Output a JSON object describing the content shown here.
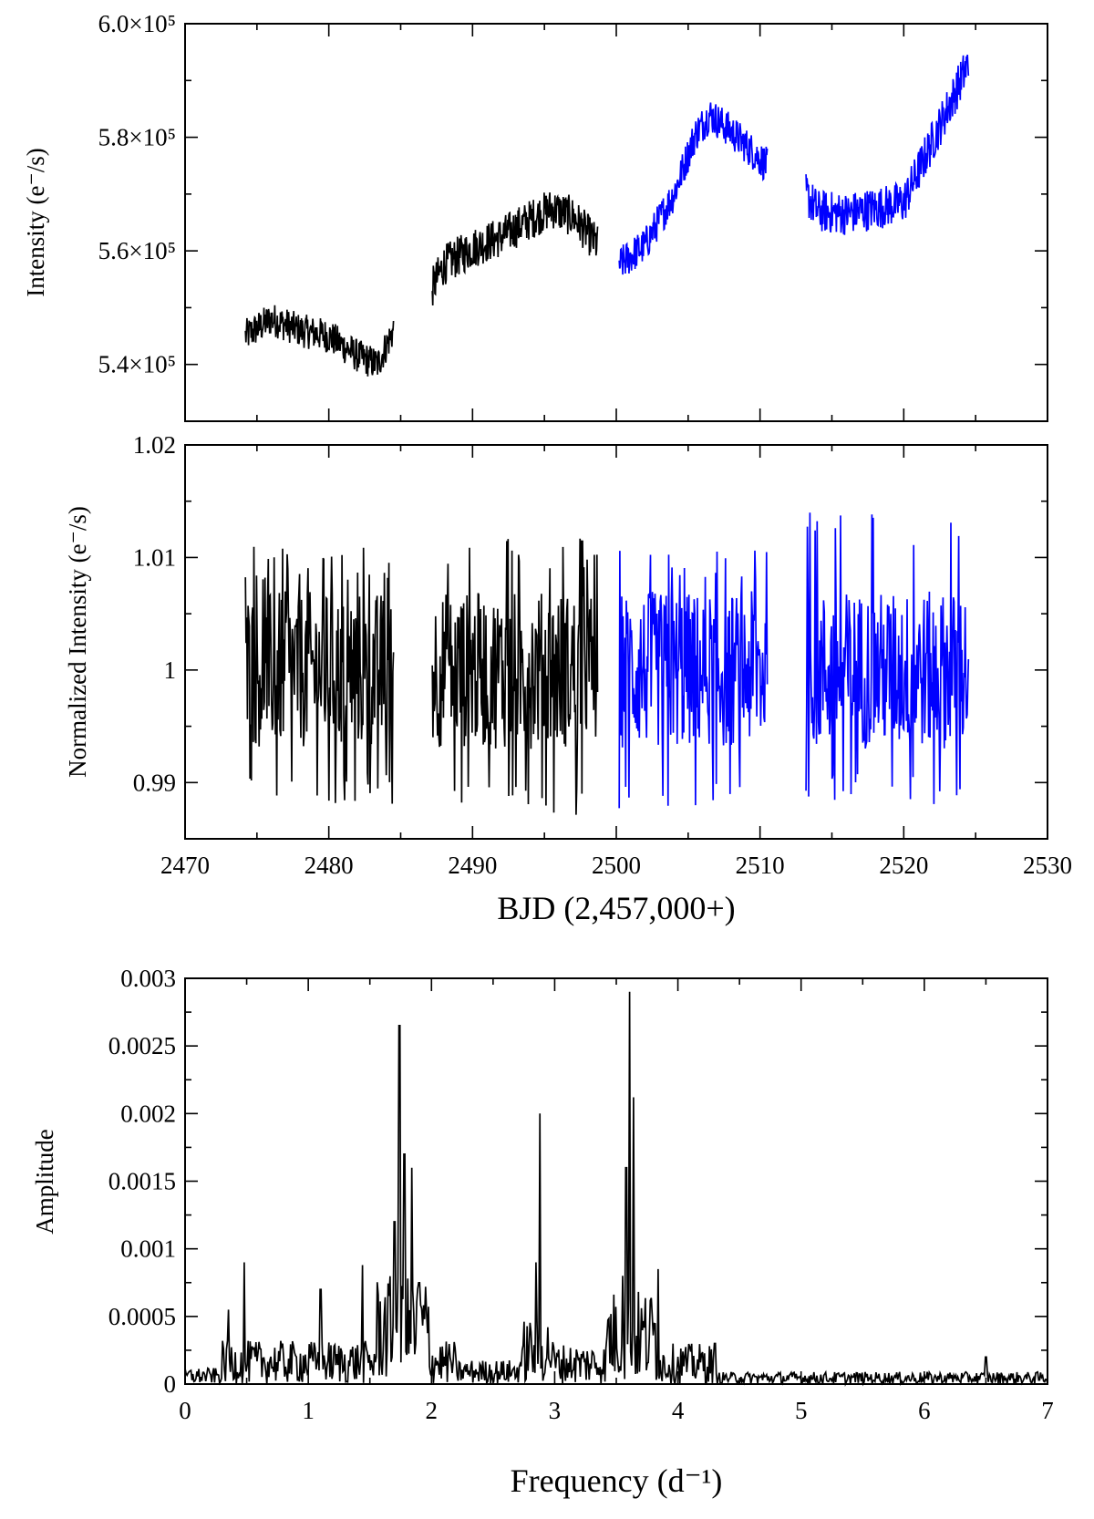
{
  "chart_data": [
    {
      "type": "line",
      "ylabel": "Intensity (e⁻/s)",
      "xlim": [
        2470,
        2530
      ],
      "ylim": [
        530000,
        600000
      ],
      "xticks": [
        2470,
        2480,
        2490,
        2500,
        2510,
        2520,
        2530
      ],
      "yticks": [
        540000,
        560000,
        580000,
        600000
      ],
      "yticklabels": [
        "5.4×10⁵",
        "5.6×10⁵",
        "5.8×10⁵",
        "6.0×10⁵"
      ],
      "series": [
        {
          "color": "#000000",
          "segments": [
            {
              "x": [
                2474.2,
                2476,
                2478,
                2480,
                2482,
                2483.4,
                2484.5
              ],
              "y": [
                545000,
                548000,
                546000,
                545000,
                541500,
                540000,
                546000
              ],
              "noise": 3000
            },
            {
              "x": [
                2487.2,
                2488,
                2490,
                2492,
                2494,
                2495.5,
                2497,
                2498.7
              ],
              "y": [
                553500,
                557500,
                560500,
                562500,
                565500,
                567500,
                566000,
                561000
              ],
              "noise": 3600
            }
          ]
        },
        {
          "color": "#0000ff",
          "segments": [
            {
              "x": [
                2500.2,
                2502,
                2504,
                2505.5,
                2506.5,
                2508,
                2510.5
              ],
              "y": [
                557500,
                561000,
                570000,
                580500,
                584000,
                581000,
                575000
              ],
              "noise": 3200
            },
            {
              "x": [
                2513.2,
                2514,
                2516,
                2518,
                2520,
                2521,
                2522.5,
                2524.5
              ],
              "y": [
                570000,
                567000,
                566500,
                567500,
                568500,
                574000,
                582000,
                593000
              ],
              "noise": 3800
            }
          ]
        }
      ]
    },
    {
      "type": "line",
      "xlabel": "BJD (2,457,000+)",
      "ylabel": "Normalized Intensity (e⁻/s)",
      "xlim": [
        2470,
        2530
      ],
      "ylim": [
        0.985,
        1.02
      ],
      "xticks": [
        2470,
        2480,
        2490,
        2500,
        2510,
        2520,
        2530
      ],
      "xticklabels": [
        "2470",
        "2480",
        "2490",
        "2500",
        "2510",
        "2520",
        "2530"
      ],
      "yticks": [
        0.99,
        1.0,
        1.01,
        1.02
      ],
      "yticklabels": [
        "0.99",
        "1",
        "1.01",
        "1.02"
      ],
      "series": [
        {
          "color": "#000000",
          "segments": [
            {
              "x": [
                2474.2,
                2484.5
              ],
              "y": [
                1.0,
                1.0
              ],
              "range": [
                0.988,
                1.011
              ]
            },
            {
              "x": [
                2487.2,
                2498.7
              ],
              "y": [
                1.0,
                1.0
              ],
              "range": [
                0.987,
                1.012
              ]
            }
          ]
        },
        {
          "color": "#0000ff",
          "segments": [
            {
              "x": [
                2500.2,
                2510.5
              ],
              "y": [
                1.0,
                1.0
              ],
              "range": [
                0.987,
                1.011
              ]
            },
            {
              "x": [
                2513.2,
                2524.5
              ],
              "y": [
                1.0,
                1.0
              ],
              "range": [
                0.988,
                1.014
              ]
            }
          ]
        }
      ]
    },
    {
      "type": "line",
      "xlabel": "Frequency (d⁻¹)",
      "ylabel": "Amplitude",
      "xlim": [
        0,
        7
      ],
      "ylim": [
        0,
        0.003
      ],
      "xticks": [
        0,
        1,
        2,
        3,
        4,
        5,
        6,
        7
      ],
      "xticklabels": [
        "0",
        "1",
        "2",
        "3",
        "4",
        "5",
        "6",
        "7"
      ],
      "yticks": [
        0,
        0.0005,
        0.001,
        0.0015,
        0.002,
        0.0025,
        0.003
      ],
      "yticklabels": [
        "0",
        "0.0005",
        "0.001",
        "0.0015",
        "0.002",
        "0.0025",
        "0.003"
      ],
      "series": [
        {
          "color": "#000000",
          "peaks": [
            {
              "x": 1.74,
              "y": 0.00265
            },
            {
              "x": 1.78,
              "y": 0.0017
            },
            {
              "x": 1.84,
              "y": 0.0016
            },
            {
              "x": 1.7,
              "y": 0.0012
            },
            {
              "x": 2.88,
              "y": 0.002
            },
            {
              "x": 2.85,
              "y": 0.0009
            },
            {
              "x": 3.61,
              "y": 0.0029
            },
            {
              "x": 3.64,
              "y": 0.00212
            },
            {
              "x": 3.58,
              "y": 0.0016
            },
            {
              "x": 3.84,
              "y": 0.00085
            },
            {
              "x": 3.55,
              "y": 0.0008
            },
            {
              "x": 0.48,
              "y": 0.0009
            },
            {
              "x": 0.35,
              "y": 0.00055
            },
            {
              "x": 1.1,
              "y": 0.0007
            },
            {
              "x": 1.44,
              "y": 0.00088
            },
            {
              "x": 1.9,
              "y": 0.00075
            },
            {
              "x": 4.3,
              "y": 0.0003
            },
            {
              "x": 6.5,
              "y": 0.0002
            }
          ]
        }
      ]
    }
  ]
}
